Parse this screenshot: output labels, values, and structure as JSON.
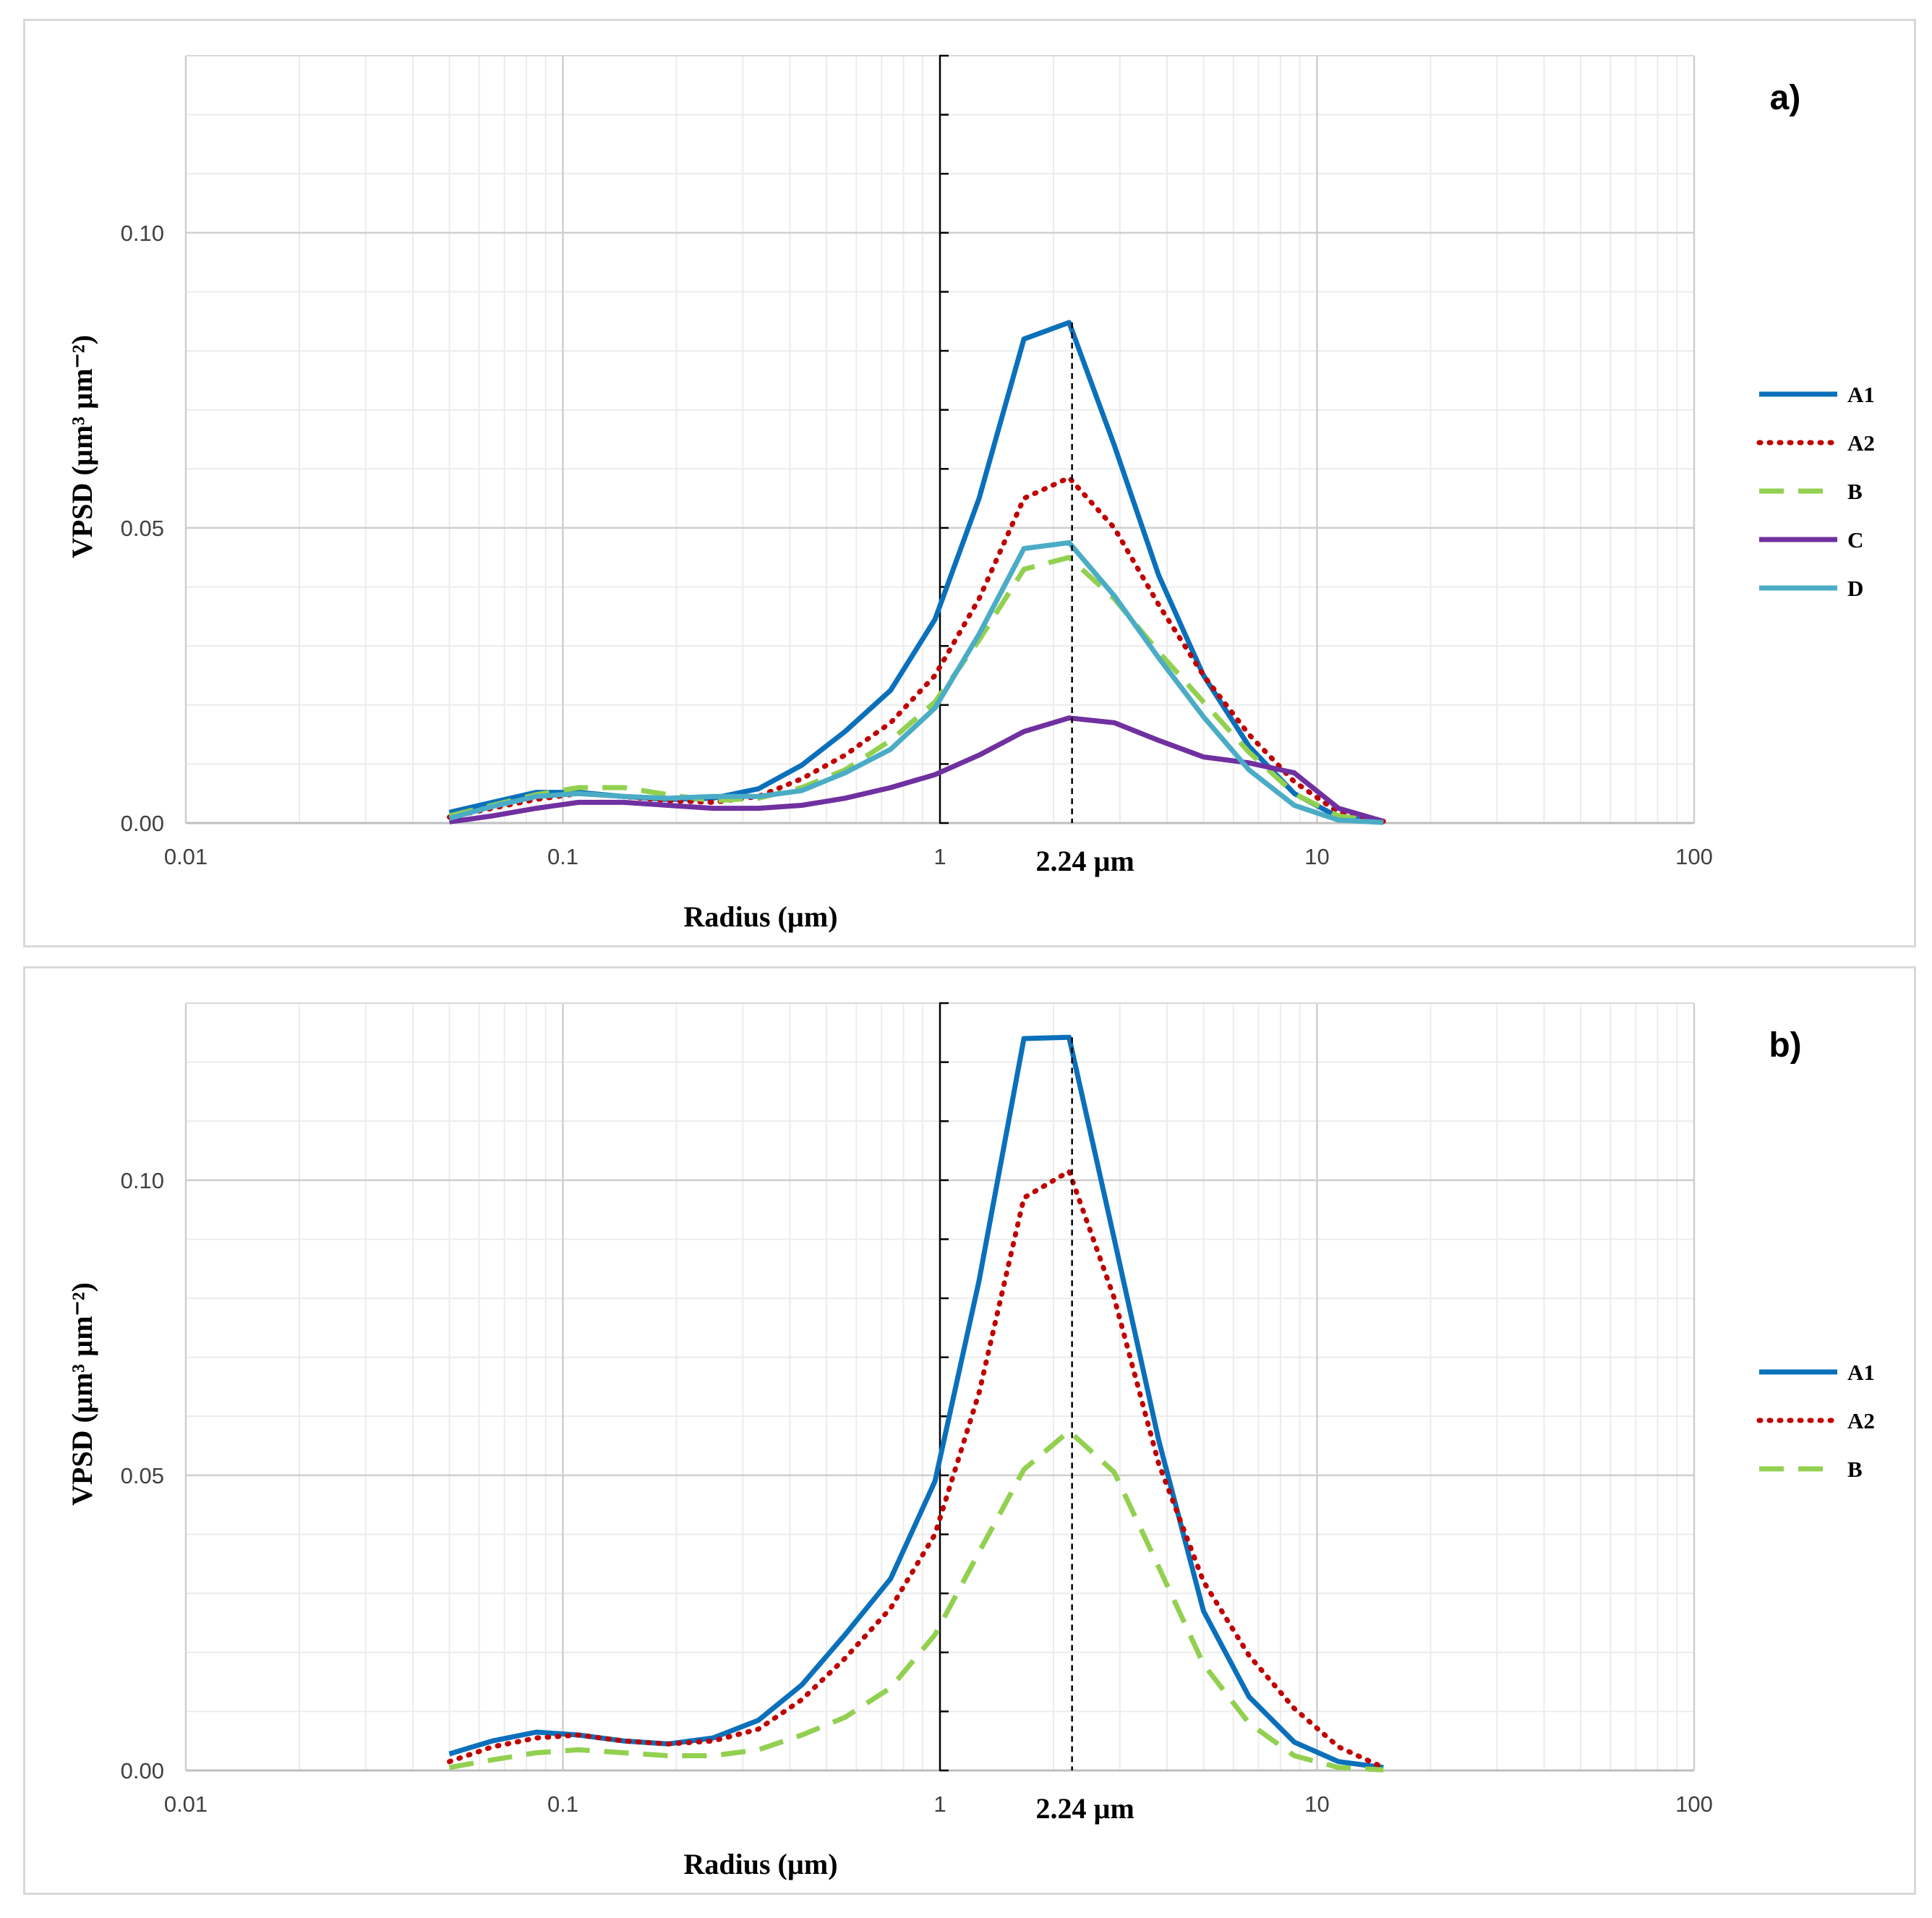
{
  "chart_data": [
    {
      "type": "line",
      "panel_label": "a)",
      "xlabel": "Radius (µm)",
      "ylabel": "VPSD (µm³ µm⁻²)",
      "xscale": "log",
      "xlim": [
        0.01,
        100
      ],
      "ylim": [
        0,
        0.13
      ],
      "x_tick_labels": [
        "0.01",
        "0.1",
        "1",
        "10",
        "100"
      ],
      "y_tick_labels": [
        "0.00",
        "0.05",
        "0.10"
      ],
      "marker_label": "2.24 µm",
      "marker_x": 2.24,
      "legend_position": "right",
      "x": [
        0.05,
        0.065,
        0.085,
        0.11,
        0.145,
        0.19,
        0.25,
        0.33,
        0.43,
        0.56,
        0.74,
        0.97,
        1.27,
        1.67,
        2.2,
        2.9,
        3.8,
        5.0,
        6.6,
        8.7,
        11.4,
        15.0
      ],
      "series": [
        {
          "name": "A1",
          "color": "#0b70bb",
          "dash": "solid",
          "width": 7,
          "values": [
            0.0018,
            0.0035,
            0.0052,
            0.0052,
            0.0045,
            0.004,
            0.0042,
            0.0058,
            0.0098,
            0.0155,
            0.0225,
            0.0345,
            0.055,
            0.082,
            0.0848,
            0.064,
            0.042,
            0.025,
            0.013,
            0.005,
            0.001,
            0.0002
          ]
        },
        {
          "name": "A2",
          "color": "#c00000",
          "dash": "dotted",
          "width": 7,
          "values": [
            0.001,
            0.0025,
            0.004,
            0.005,
            0.0045,
            0.0038,
            0.0035,
            0.0045,
            0.0075,
            0.0115,
            0.017,
            0.025,
            0.038,
            0.055,
            0.0585,
            0.05,
            0.037,
            0.025,
            0.015,
            0.007,
            0.0018,
            0.0003
          ]
        },
        {
          "name": "B",
          "color": "#92d050",
          "dash": "dashed",
          "width": 7,
          "values": [
            0.0012,
            0.003,
            0.0048,
            0.006,
            0.006,
            0.0048,
            0.0038,
            0.0042,
            0.006,
            0.009,
            0.014,
            0.0205,
            0.031,
            0.043,
            0.045,
            0.038,
            0.029,
            0.0205,
            0.012,
            0.005,
            0.0012,
            0.0002
          ]
        },
        {
          "name": "C",
          "color": "#7030a0",
          "dash": "solid",
          "width": 7,
          "values": [
            0.0002,
            0.0012,
            0.0025,
            0.0035,
            0.0035,
            0.003,
            0.0025,
            0.0025,
            0.003,
            0.0042,
            0.006,
            0.0082,
            0.0115,
            0.0155,
            0.0178,
            0.017,
            0.014,
            0.0112,
            0.0102,
            0.0085,
            0.0025,
            0.0003
          ]
        },
        {
          "name": "D",
          "color": "#4bacc6",
          "dash": "solid",
          "width": 7,
          "values": [
            0.0008,
            0.0028,
            0.0045,
            0.005,
            0.0045,
            0.0042,
            0.0045,
            0.0045,
            0.0055,
            0.0085,
            0.0125,
            0.0195,
            0.032,
            0.0465,
            0.0475,
            0.0385,
            0.028,
            0.018,
            0.009,
            0.003,
            0.0005,
            0.0001
          ]
        }
      ]
    },
    {
      "type": "line",
      "panel_label": "b)",
      "xlabel": "Radius (µm)",
      "ylabel": "VPSD (µm³ µm⁻²)",
      "xscale": "log",
      "xlim": [
        0.01,
        100
      ],
      "ylim": [
        0,
        0.13
      ],
      "x_tick_labels": [
        "0.01",
        "0.1",
        "1",
        "10",
        "100"
      ],
      "y_tick_labels": [
        "0.00",
        "0.05",
        "0.10"
      ],
      "marker_label": "2.24 µm",
      "marker_x": 2.24,
      "legend_position": "right",
      "x": [
        0.05,
        0.065,
        0.085,
        0.11,
        0.145,
        0.19,
        0.25,
        0.33,
        0.43,
        0.56,
        0.74,
        0.97,
        1.27,
        1.67,
        2.2,
        2.9,
        3.8,
        5.0,
        6.6,
        8.7,
        11.4,
        15.0
      ],
      "series": [
        {
          "name": "A1",
          "color": "#0b70bb",
          "dash": "solid",
          "width": 7,
          "values": [
            0.0028,
            0.005,
            0.0065,
            0.006,
            0.005,
            0.0045,
            0.0055,
            0.0085,
            0.0145,
            0.023,
            0.0325,
            0.049,
            0.083,
            0.124,
            0.1242,
            0.09,
            0.056,
            0.027,
            0.0125,
            0.0048,
            0.0015,
            0.0005
          ]
        },
        {
          "name": "A2",
          "color": "#c00000",
          "dash": "dotted",
          "width": 7,
          "values": [
            0.0015,
            0.004,
            0.0055,
            0.006,
            0.005,
            0.0045,
            0.005,
            0.007,
            0.012,
            0.019,
            0.0275,
            0.04,
            0.064,
            0.097,
            0.1015,
            0.08,
            0.052,
            0.032,
            0.0195,
            0.0105,
            0.004,
            0.0005
          ]
        },
        {
          "name": "B",
          "color": "#92d050",
          "dash": "dashed",
          "width": 7,
          "values": [
            0.0005,
            0.0018,
            0.003,
            0.0035,
            0.003,
            0.0025,
            0.0025,
            0.0035,
            0.006,
            0.009,
            0.014,
            0.023,
            0.037,
            0.051,
            0.0575,
            0.0505,
            0.0345,
            0.018,
            0.008,
            0.0025,
            0.0005,
            0.0001
          ]
        }
      ]
    }
  ]
}
